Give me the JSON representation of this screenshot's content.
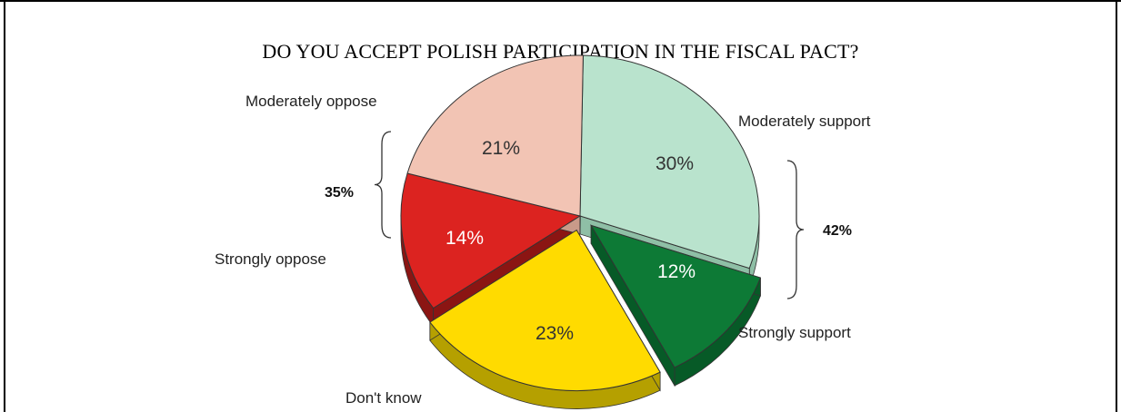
{
  "chart_data": {
    "type": "pie",
    "title": "DO YOU ACCEPT POLISH PARTICIPATION IN THE FISCAL PACT?",
    "slices": [
      {
        "label": "Moderately support",
        "value": 30,
        "display": "30%",
        "color": "#b9e3cd",
        "side_color": "#8fbfa6",
        "text_color": "#333333",
        "exploded": false
      },
      {
        "label": "Strongly support",
        "value": 12,
        "display": "12%",
        "color": "#0d7a36",
        "side_color": "#075a27",
        "text_color": "#ffffff",
        "exploded": true
      },
      {
        "label": "Don't know",
        "value": 23,
        "display": "23%",
        "color": "#ffdb00",
        "side_color": "#b5a000",
        "text_color": "#333333",
        "exploded": true
      },
      {
        "label": "Strongly oppose",
        "value": 14,
        "display": "14%",
        "color": "#dc2320",
        "side_color": "#8b1513",
        "text_color": "#ffffff",
        "exploded": false
      },
      {
        "label": "Moderately oppose",
        "value": 21,
        "display": "21%",
        "color": "#f2c4b4",
        "side_color": "#c99a89",
        "text_color": "#333333",
        "exploded": false
      }
    ],
    "groups": [
      {
        "label": "42%",
        "members": [
          "Moderately support",
          "Strongly support"
        ]
      },
      {
        "label": "35%",
        "members": [
          "Moderately oppose",
          "Strongly oppose"
        ]
      }
    ]
  }
}
